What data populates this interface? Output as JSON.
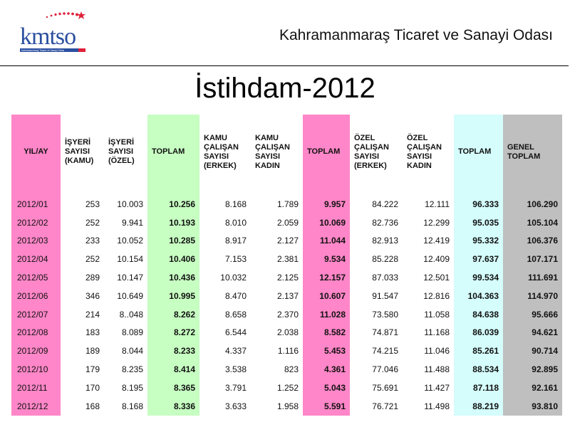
{
  "header": {
    "org_name": "Kahramanmaraş Ticaret ve Sanayi Odası",
    "logo_text": "kmtso",
    "logo_tagline": "Kahramanmaraş Ticaret ve Sanayi Odası"
  },
  "title": "İstihdam-2012",
  "colors": {
    "pink": "#ff86c8",
    "green": "#c7fec2",
    "cyan": "#d4fdfc",
    "grey": "#bfbfbf",
    "logo_blue": "#2b4fa0",
    "logo_red": "#e0203a"
  },
  "table": {
    "headers": [
      "YIL/AY",
      "İŞYERİ SAYISI (KAMU)",
      "İŞYERİ SAYISI (ÖZEL)",
      "TOPLAM",
      "KAMU ÇALIŞAN SAYISI (ERKEK)",
      "KAMU ÇALIŞAN SAYISI KADIN",
      "TOPLAM",
      "ÖZEL ÇALIŞAN SAYISI (ERKEK)",
      "ÖZEL ÇALIŞAN SAYISI KADIN",
      "TOPLAM",
      "GENEL TOPLAM"
    ],
    "rows": [
      [
        "2012/01",
        "253",
        "10.003",
        "10.256",
        "8.168",
        "1.789",
        "9.957",
        "84.222",
        "12.111",
        "96.333",
        "106.290"
      ],
      [
        "2012/02",
        "252",
        "9.941",
        "10.193",
        "8.010",
        "2.059",
        "10.069",
        "82.736",
        "12.299",
        "95.035",
        "105.104"
      ],
      [
        "2012/03",
        "233",
        "10.052",
        "10.285",
        "8.917",
        "2.127",
        "11.044",
        "82.913",
        "12.419",
        "95.332",
        "106.376"
      ],
      [
        "2012/04",
        "252",
        "10.154",
        "10.406",
        "7.153",
        "2.381",
        "9.534",
        "85.228",
        "12.409",
        "97.637",
        "107.171"
      ],
      [
        "2012/05",
        "289",
        "10.147",
        "10.436",
        "10.032",
        "2.125",
        "12.157",
        "87.033",
        "12.501",
        "99.534",
        "111.691"
      ],
      [
        "2012/06",
        "346",
        "10.649",
        "10.995",
        "8.470",
        "2.137",
        "10.607",
        "91.547",
        "12.816",
        "104.363",
        "114.970"
      ],
      [
        "2012/07",
        "214",
        "8..048",
        "8.262",
        "8.658",
        "2.370",
        "11.028",
        "73.580",
        "11.058",
        "84.638",
        "95.666"
      ],
      [
        "2012/08",
        "183",
        "8.089",
        "8.272",
        "6.544",
        "2.038",
        "8.582",
        "74.871",
        "11.168",
        "86.039",
        "94.621"
      ],
      [
        "2012/09",
        "189",
        "8.044",
        "8.233",
        "4.337",
        "1.116",
        "5.453",
        "74.215",
        "11.046",
        "85.261",
        "90.714"
      ],
      [
        "2012/10",
        "179",
        "8.235",
        "8.414",
        "3.538",
        "823",
        "4.361",
        "77.046",
        "11.488",
        "88.534",
        "92.895"
      ],
      [
        "2012/11",
        "170",
        "8.195",
        "8.365",
        "3.791",
        "1.252",
        "5.043",
        "75.691",
        "11.427",
        "87.118",
        "92.161"
      ],
      [
        "2012/12",
        "168",
        "8.168",
        "8.336",
        "3.633",
        "1.958",
        "5.591",
        "76.721",
        "11.498",
        "88.219",
        "93.810"
      ]
    ]
  }
}
